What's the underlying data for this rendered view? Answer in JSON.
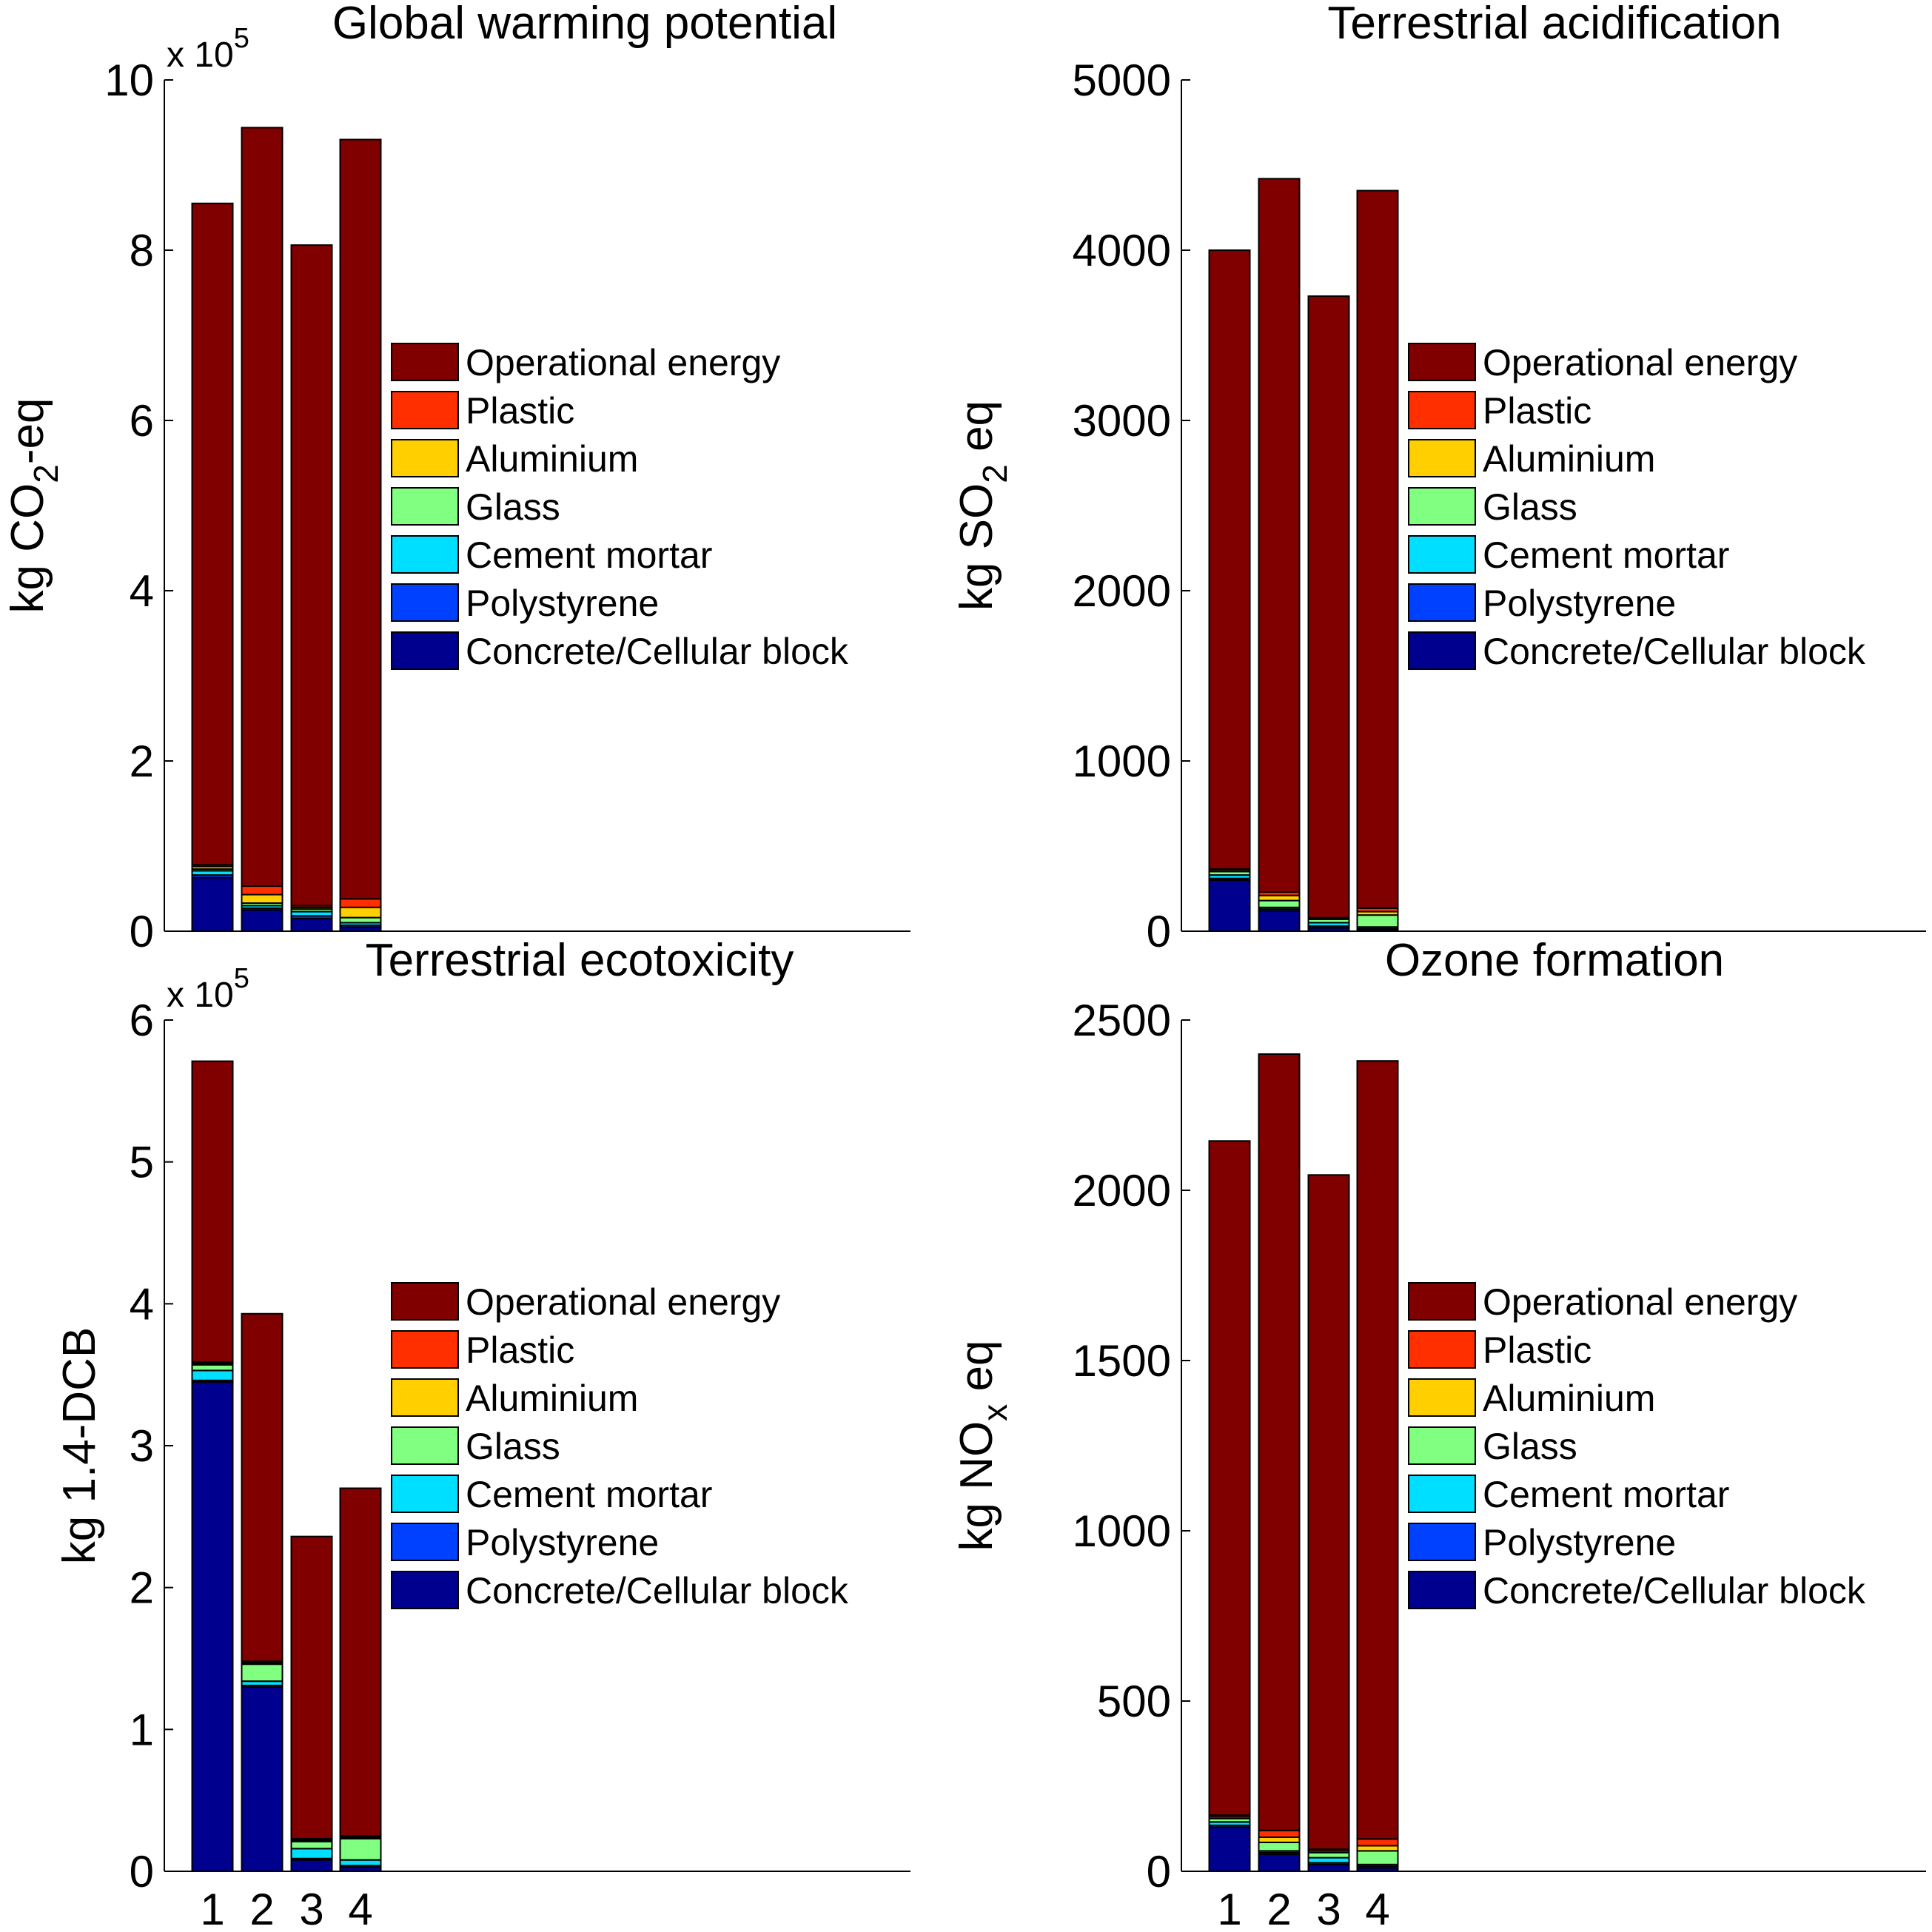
{
  "figure": {
    "category_labels": [
      "1",
      "2",
      "3",
      "4"
    ],
    "legend_entries": [
      "Operational energy",
      "Plastic",
      "Aluminium",
      "Glass",
      "Cement mortar",
      "Polystyrene",
      "Concrete/Cellular block"
    ]
  },
  "series_colors": {
    "Concrete/Cellular block": "#00008F",
    "Polystyrene": "#0040FF",
    "Cement mortar": "#00DFFF",
    "Glass": "#80FF80",
    "Aluminium": "#FFCF00",
    "Plastic": "#FF2F00",
    "Operational energy": "#800000"
  },
  "chart_data": [
    {
      "type": "bar",
      "stacked": true,
      "title": "Global warming potential",
      "ylabel": {
        "base": "kg CO",
        "sub": "2",
        "tail": "-eq"
      },
      "ylim": [
        0,
        1000000
      ],
      "yticks": [
        0,
        200000,
        400000,
        600000,
        800000,
        1000000
      ],
      "ytick_labels": [
        "0",
        "2",
        "4",
        "6",
        "8",
        "10"
      ],
      "exponent": {
        "prefix": "x 10",
        "power": "5"
      },
      "categories": [
        "1",
        "2",
        "3",
        "4"
      ],
      "show_xticks": false,
      "legend_position": "right",
      "series": [
        {
          "name": "Concrete/Cellular block",
          "values": [
            63000,
            25000,
            15000,
            5000
          ]
        },
        {
          "name": "Polystyrene",
          "values": [
            3000,
            2000,
            3000,
            2000
          ]
        },
        {
          "name": "Cement mortar",
          "values": [
            5000,
            3000,
            5000,
            3000
          ]
        },
        {
          "name": "Glass",
          "values": [
            2000,
            3000,
            3000,
            6000
          ]
        },
        {
          "name": "Aluminium",
          "values": [
            3000,
            10000,
            2000,
            12000
          ]
        },
        {
          "name": "Plastic",
          "values": [
            2000,
            10000,
            2000,
            10000
          ]
        },
        {
          "name": "Operational energy",
          "values": [
            777000,
            891000,
            776000,
            892000
          ]
        }
      ]
    },
    {
      "type": "bar",
      "stacked": true,
      "title": "Terrestrial acidification",
      "ylabel": {
        "base": "kg SO",
        "sub": "2",
        "tail": " eq"
      },
      "ylim": [
        0,
        5000
      ],
      "yticks": [
        0,
        1000,
        2000,
        3000,
        4000,
        5000
      ],
      "ytick_labels": [
        "0",
        "1000",
        "2000",
        "3000",
        "4000",
        "5000"
      ],
      "categories": [
        "1",
        "2",
        "3",
        "4"
      ],
      "show_xticks": false,
      "legend_position": "right",
      "series": [
        {
          "name": "Concrete/Cellular block",
          "values": [
            300,
            120,
            20,
            10
          ]
        },
        {
          "name": "Polystyrene",
          "values": [
            10,
            10,
            10,
            5
          ]
        },
        {
          "name": "Cement mortar",
          "values": [
            20,
            10,
            20,
            10
          ]
        },
        {
          "name": "Glass",
          "values": [
            20,
            40,
            20,
            70
          ]
        },
        {
          "name": "Aluminium",
          "values": [
            10,
            30,
            5,
            20
          ]
        },
        {
          "name": "Plastic",
          "values": [
            5,
            20,
            5,
            20
          ]
        },
        {
          "name": "Operational energy",
          "values": [
            3635,
            4190,
            3650,
            4215
          ]
        }
      ]
    },
    {
      "type": "bar",
      "stacked": true,
      "title": "Terrestrial ecotoxicity",
      "ylabel": {
        "base": "kg  1.4-DCB",
        "sub": "",
        "tail": ""
      },
      "ylim": [
        0,
        600000
      ],
      "yticks": [
        0,
        100000,
        200000,
        300000,
        400000,
        500000,
        600000
      ],
      "ytick_labels": [
        "0",
        "1",
        "2",
        "3",
        "4",
        "5",
        "6"
      ],
      "exponent": {
        "prefix": "x 10",
        "power": "5"
      },
      "categories": [
        "1",
        "2",
        "3",
        "4"
      ],
      "show_xticks": true,
      "legend_position": "right",
      "series": [
        {
          "name": "Concrete/Cellular block",
          "values": [
            345000,
            130000,
            8000,
            3000
          ]
        },
        {
          "name": "Polystyrene",
          "values": [
            1000,
            1000,
            1000,
            1000
          ]
        },
        {
          "name": "Cement mortar",
          "values": [
            7000,
            3000,
            7000,
            4000
          ]
        },
        {
          "name": "Glass",
          "values": [
            4000,
            12000,
            5000,
            15000
          ]
        },
        {
          "name": "Aluminium",
          "values": [
            1000,
            1000,
            1000,
            1000
          ]
        },
        {
          "name": "Plastic",
          "values": [
            1000,
            1000,
            1000,
            1000
          ]
        },
        {
          "name": "Operational energy",
          "values": [
            212000,
            245000,
            213000,
            245000
          ]
        }
      ]
    },
    {
      "type": "bar",
      "stacked": true,
      "title": "Ozone formation",
      "ylabel": {
        "base": "kg NO",
        "sub": "x",
        "tail": " eq"
      },
      "ylim": [
        0,
        2500
      ],
      "yticks": [
        0,
        500,
        1000,
        1500,
        2000,
        2500
      ],
      "ytick_labels": [
        "0",
        "500",
        "1000",
        "1500",
        "2000",
        "2500"
      ],
      "categories": [
        "1",
        "2",
        "3",
        "4"
      ],
      "show_xticks": true,
      "legend_position": "right",
      "series": [
        {
          "name": "Concrete/Cellular block",
          "values": [
            130,
            50,
            20,
            10
          ]
        },
        {
          "name": "Polystyrene",
          "values": [
            5,
            5,
            5,
            5
          ]
        },
        {
          "name": "Cement mortar",
          "values": [
            10,
            5,
            15,
            5
          ]
        },
        {
          "name": "Glass",
          "values": [
            10,
            25,
            15,
            40
          ]
        },
        {
          "name": "Aluminium",
          "values": [
            5,
            15,
            5,
            15
          ]
        },
        {
          "name": "Plastic",
          "values": [
            5,
            20,
            5,
            20
          ]
        },
        {
          "name": "Operational energy",
          "values": [
            1980,
            2280,
            1980,
            2285
          ]
        }
      ]
    }
  ]
}
